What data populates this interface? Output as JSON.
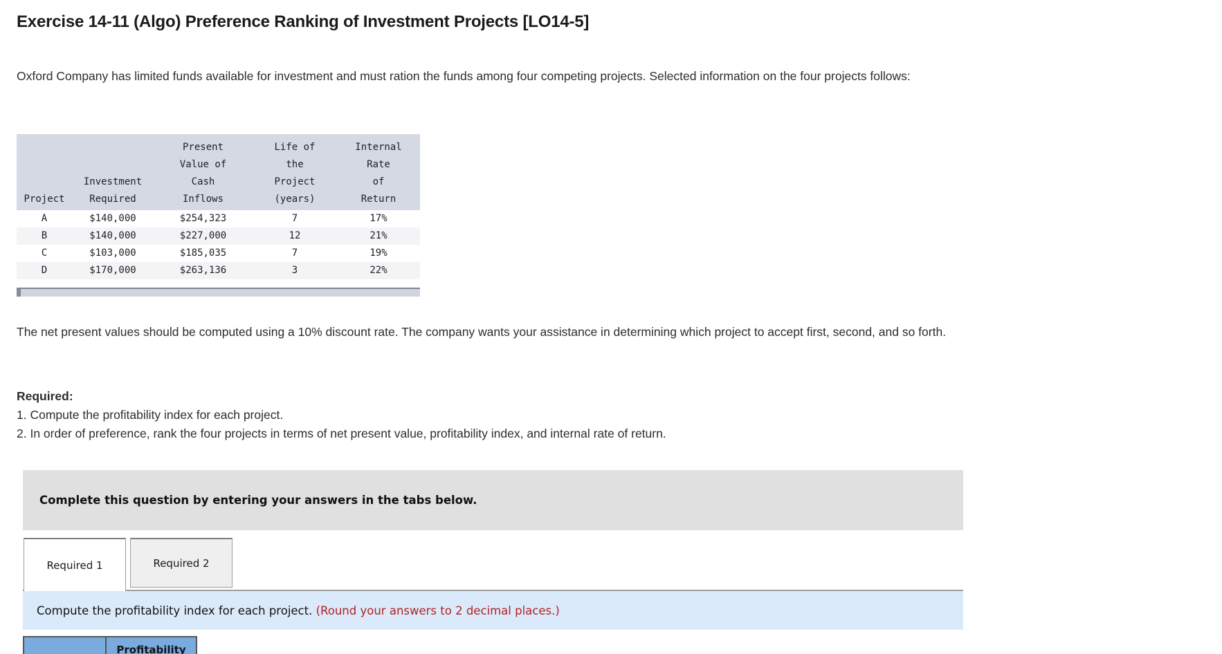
{
  "page": {
    "title": "Exercise 14-11 (Algo) Preference Ranking of Investment Projects [LO14-5]",
    "intro": "Oxford Company has limited funds available for investment and must ration the funds among four competing projects. Selected information on the four projects follows:",
    "discussion": "The net present values should be computed using a 10% discount rate. The company wants your assistance in determining which project to accept first, second, and so forth.",
    "required_label": "Required:",
    "required_items": [
      "1. Compute the profitability index for each project.",
      "2. In order of preference, rank the four projects in terms of net present value, profitability index, and internal rate of return."
    ]
  },
  "projects_table": {
    "columns": [
      {
        "lines": [
          "Project"
        ]
      },
      {
        "lines": [
          "Investment",
          "Required"
        ]
      },
      {
        "lines": [
          "Present",
          "Value of",
          "Cash",
          "Inflows"
        ]
      },
      {
        "lines": [
          "Life of",
          "the",
          "Project",
          "(years)"
        ]
      },
      {
        "lines": [
          "Internal",
          "Rate",
          "of",
          "Return"
        ]
      }
    ],
    "rows": [
      [
        "A",
        "$140,000",
        "$254,323",
        "7",
        "17%"
      ],
      [
        "B",
        "$140,000",
        "$227,000",
        "12",
        "21%"
      ],
      [
        "C",
        "$103,000",
        "$185,035",
        "7",
        "19%"
      ],
      [
        "D",
        "$170,000",
        "$263,136",
        "3",
        "22%"
      ]
    ]
  },
  "answer_panel": {
    "banner": "Complete this question by entering your answers in the tabs below.",
    "tabs": [
      {
        "label": "Required 1",
        "active": true
      },
      {
        "label": "Required 2",
        "active": false
      }
    ],
    "instruction_main": "Compute the profitability index for each project. ",
    "instruction_note": "(Round your answers to 2 decimal places.)",
    "answer_table_header": "Profitability"
  },
  "colors": {
    "projects_header_bg": "#d5d9e4",
    "projects_alt_row_bg": "#f4f4f6",
    "banner_bg": "#e0e0e0",
    "instruction_bg": "#dbeafa",
    "instruction_note_color": "#b22222",
    "answer_header_bg": "#7aabde"
  }
}
